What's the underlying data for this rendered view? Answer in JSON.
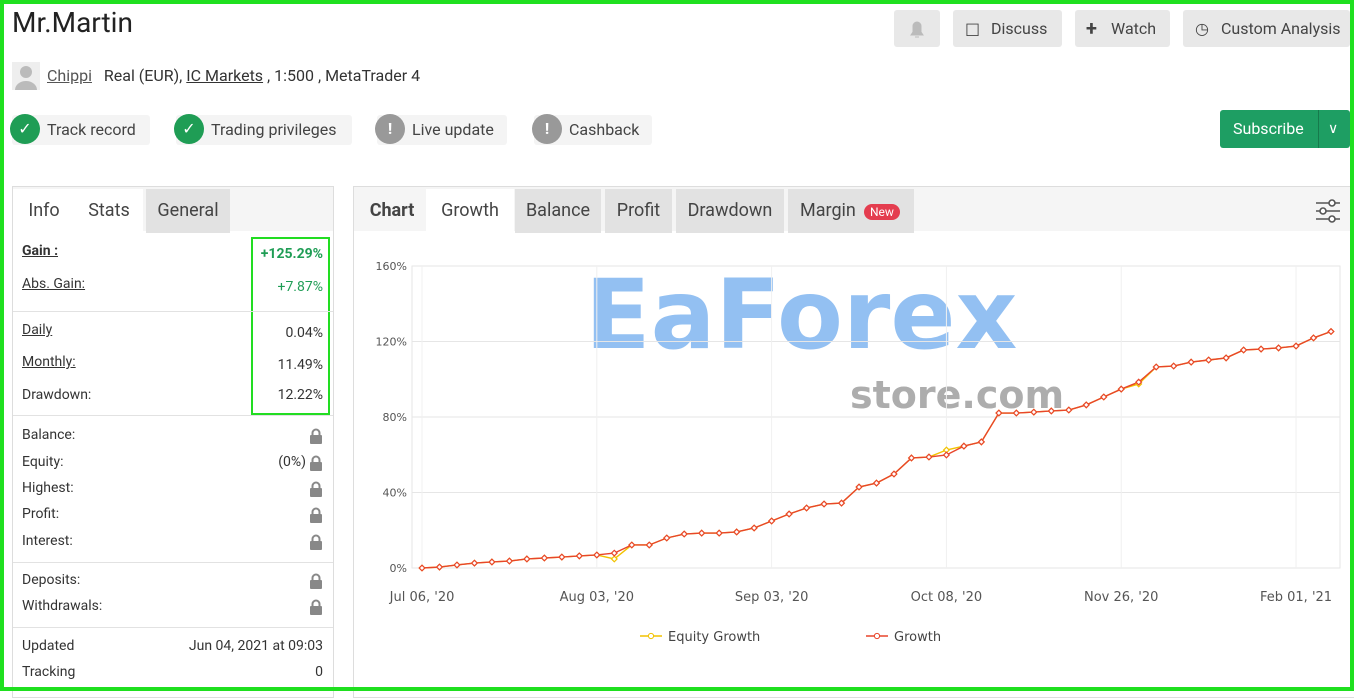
{
  "header": {
    "title": "Mr.Martin",
    "buttons": [
      "Discuss",
      "Watch",
      "Custom Analysis"
    ],
    "user": "Chippi",
    "account": "Real (EUR),",
    "broker": "IC Markets",
    "details": ", 1:500 , MetaTrader 4"
  },
  "badges": [
    {
      "label": "Track record",
      "ok": true
    },
    {
      "label": "Trading privileges",
      "ok": true
    },
    {
      "label": "Live update",
      "ok": false
    },
    {
      "label": "Cashback",
      "ok": false
    }
  ],
  "subscribe": "Subscribe",
  "info_tabs": [
    "Info",
    "Stats",
    "General"
  ],
  "stats": [
    {
      "label": "Gain :",
      "value": "+125.29%"
    },
    {
      "label": "Abs. Gain:",
      "value": "+7.87%"
    },
    {
      "label": "Daily",
      "value": "0.04%"
    },
    {
      "label": "Monthly:",
      "value": "11.49%"
    },
    {
      "label": "Drawdown:",
      "value": "12.22%"
    }
  ],
  "locked": [
    {
      "label": "Balance:"
    },
    {
      "label": "Equity:",
      "value": "(0%)"
    },
    {
      "label": "Highest:"
    },
    {
      "label": "Profit:"
    },
    {
      "label": "Interest:"
    },
    {
      "label": "Deposits:"
    },
    {
      "label": "Withdrawals:"
    }
  ],
  "meta": [
    {
      "label": "Updated",
      "value": "Jun 04, 2021 at 09:03"
    },
    {
      "label": "Tracking",
      "value": "0"
    }
  ],
  "chart_tabs": [
    "Chart",
    "Growth",
    "Balance",
    "Profit",
    "Drawdown",
    "Margin"
  ],
  "new_badge": "New",
  "watermark": [
    "EaForex",
    "store.com"
  ],
  "chart_data": {
    "type": "line",
    "categories": [
      "Jul 06, '20",
      null,
      null,
      null,
      null,
      null,
      null,
      null,
      null,
      null,
      "Aug 03, '20",
      null,
      null,
      null,
      null,
      null,
      null,
      null,
      null,
      null,
      "Sep 03, '20",
      null,
      null,
      null,
      null,
      null,
      null,
      null,
      null,
      null,
      "Oct 08, '20",
      null,
      null,
      null,
      null,
      null,
      null,
      null,
      null,
      null,
      "Nov 26, '20",
      null,
      null,
      null,
      null,
      null,
      null,
      null,
      null,
      null,
      "Feb 01, '21",
      null,
      null
    ],
    "series": [
      {
        "name": "Equity Growth",
        "color": "#f2c200",
        "values": [
          0,
          0.5,
          1.6,
          2.6,
          3.2,
          3.7,
          4.8,
          5.3,
          5.8,
          6.4,
          6.9,
          4.8,
          12.2,
          12.2,
          15.9,
          18,
          18.5,
          18.5,
          19.1,
          21.2,
          24.9,
          28.6,
          31.8,
          33.9,
          34.4,
          42.9,
          45,
          49.8,
          58.3,
          58.8,
          62.5,
          64.6,
          66.8,
          82.1,
          82.1,
          82.6,
          83.2,
          83.7,
          86.4,
          90.6,
          94.8,
          97.5,
          106.5,
          107,
          109.1,
          110.2,
          111.3,
          115.5,
          116,
          116.6,
          117.6,
          121.9,
          125.29
        ]
      },
      {
        "name": "Growth",
        "color": "#e8452b",
        "values": [
          0,
          0.5,
          1.6,
          2.6,
          3.2,
          3.7,
          4.8,
          5.3,
          5.8,
          6.4,
          6.9,
          7.9,
          12.2,
          12.2,
          15.9,
          18,
          18.5,
          18.5,
          19.1,
          21.2,
          24.9,
          28.6,
          31.8,
          33.9,
          34.4,
          42.9,
          45,
          49.8,
          58.3,
          58.8,
          59.9,
          64.6,
          66.8,
          82.1,
          82.1,
          82.6,
          83.2,
          83.7,
          86.4,
          90.6,
          94.8,
          98.5,
          106.5,
          107,
          109.1,
          110.2,
          111.3,
          115.5,
          116,
          116.6,
          117.6,
          121.9,
          125.29
        ]
      }
    ],
    "ylim": [
      0,
      160
    ],
    "yticks": [
      {
        "value": 0,
        "label": "0%"
      },
      {
        "value": 40,
        "label": "40%"
      },
      {
        "value": 80,
        "label": "80%"
      },
      {
        "value": 120,
        "label": "120%"
      },
      {
        "value": 160,
        "label": "160%"
      }
    ],
    "grid": true
  }
}
